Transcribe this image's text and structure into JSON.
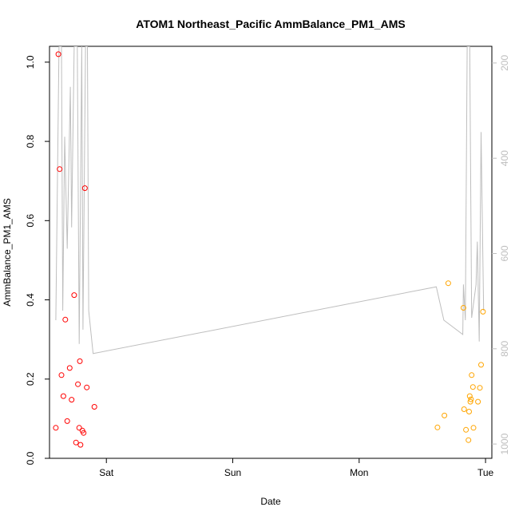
{
  "chart_data": {
    "type": "scatter",
    "title": "ATOM1 Northeast_Pacific AmmBalance_PM1_AMS",
    "xlabel": "Date",
    "ylabel": "AmmBalance_PM1_AMS",
    "x_ticks": [
      "Sat",
      "Sun",
      "Mon",
      "Tue"
    ],
    "x_tick_values": [
      1.0,
      2.0,
      3.0,
      4.0
    ],
    "xlim": [
      0.55,
      4.05
    ],
    "ylim": [
      0.0,
      1.04
    ],
    "y_ticks": [
      0.0,
      0.2,
      0.4,
      0.6,
      0.8,
      1.0
    ],
    "y_tick_labels": [
      "0.0",
      "0.2",
      "0.4",
      "0.6",
      "0.8",
      "1.0"
    ],
    "y2_ticks": [
      200,
      400,
      600,
      800,
      1000
    ],
    "y2_lim": [
      1030,
      165
    ],
    "y2_reversed": true,
    "grid": false,
    "colors": {
      "red_series": "#ff0000",
      "orange_series": "#ffa500",
      "altitude_line": "#bebebe",
      "axis": "#000000",
      "right_axis": "#bebebe"
    },
    "series": [
      {
        "color": "red",
        "points": [
          {
            "x": 0.6,
            "y": 0.077
          },
          {
            "x": 0.62,
            "y": 1.02
          },
          {
            "x": 0.63,
            "y": 0.73
          },
          {
            "x": 0.645,
            "y": 0.21
          },
          {
            "x": 0.66,
            "y": 0.157
          },
          {
            "x": 0.675,
            "y": 0.35
          },
          {
            "x": 0.69,
            "y": 0.094
          },
          {
            "x": 0.71,
            "y": 0.228
          },
          {
            "x": 0.725,
            "y": 0.148
          },
          {
            "x": 0.745,
            "y": 0.412
          },
          {
            "x": 0.76,
            "y": 0.04
          },
          {
            "x": 0.775,
            "y": 0.187
          },
          {
            "x": 0.785,
            "y": 0.077
          },
          {
            "x": 0.79,
            "y": 0.245
          },
          {
            "x": 0.795,
            "y": 0.034
          },
          {
            "x": 0.81,
            "y": 0.07
          },
          {
            "x": 0.82,
            "y": 0.064
          },
          {
            "x": 0.83,
            "y": 0.682
          },
          {
            "x": 0.845,
            "y": 0.179
          },
          {
            "x": 0.905,
            "y": 0.13
          }
        ]
      },
      {
        "color": "orange",
        "points": [
          {
            "x": 3.62,
            "y": 0.078
          },
          {
            "x": 3.675,
            "y": 0.108
          },
          {
            "x": 3.705,
            "y": 0.442
          },
          {
            "x": 3.825,
            "y": 0.38
          },
          {
            "x": 3.83,
            "y": 0.124
          },
          {
            "x": 3.845,
            "y": 0.072
          },
          {
            "x": 3.865,
            "y": 0.046
          },
          {
            "x": 3.87,
            "y": 0.118
          },
          {
            "x": 3.875,
            "y": 0.157
          },
          {
            "x": 3.88,
            "y": 0.143
          },
          {
            "x": 3.885,
            "y": 0.149
          },
          {
            "x": 3.89,
            "y": 0.21
          },
          {
            "x": 3.9,
            "y": 0.18
          },
          {
            "x": 3.905,
            "y": 0.077
          },
          {
            "x": 3.94,
            "y": 0.143
          },
          {
            "x": 3.955,
            "y": 0.178
          },
          {
            "x": 3.965,
            "y": 0.236
          },
          {
            "x": 3.98,
            "y": 0.37
          }
        ]
      }
    ],
    "altitude_line": {
      "points": [
        [
          0.6,
          740
        ],
        [
          0.625,
          165
        ],
        [
          0.645,
          165
        ],
        [
          0.655,
          720
        ],
        [
          0.67,
          355
        ],
        [
          0.69,
          590
        ],
        [
          0.715,
          250
        ],
        [
          0.725,
          545
        ],
        [
          0.745,
          165
        ],
        [
          0.77,
          165
        ],
        [
          0.785,
          790
        ],
        [
          0.805,
          165
        ],
        [
          0.815,
          760
        ],
        [
          0.835,
          165
        ],
        [
          0.85,
          165
        ],
        [
          0.86,
          720
        ],
        [
          0.895,
          810
        ],
        [
          3.61,
          670
        ],
        [
          3.67,
          740
        ],
        [
          3.82,
          770
        ],
        [
          3.825,
          665
        ],
        [
          3.84,
          740
        ],
        [
          3.855,
          165
        ],
        [
          3.875,
          165
        ],
        [
          3.89,
          735
        ],
        [
          3.925,
          665
        ],
        [
          3.935,
          575
        ],
        [
          3.95,
          785
        ],
        [
          3.965,
          345
        ],
        [
          3.985,
          720
        ]
      ]
    }
  }
}
